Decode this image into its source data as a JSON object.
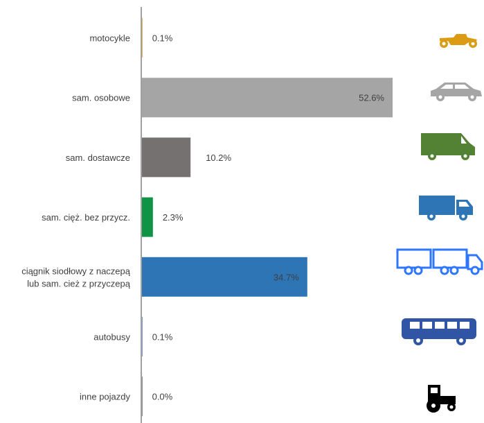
{
  "chart_data": {
    "type": "bar",
    "orientation": "horizontal",
    "title": "",
    "xlabel": "",
    "ylabel": "",
    "xlim": [
      0,
      63
    ],
    "grid": false,
    "legend": "none",
    "categories": [
      [
        "motocykle"
      ],
      [
        "sam. osobowe"
      ],
      [
        "sam. dostawcze"
      ],
      [
        "sam. cięż. bez przycz."
      ],
      [
        "ciągnik siodłowy z naczepą",
        "lub sam. cież z przyczepą"
      ],
      [
        "autobusy"
      ],
      [
        "inne pojazdy"
      ]
    ],
    "values": [
      0.1,
      52.6,
      10.2,
      2.3,
      34.7,
      0.1,
      0.0
    ],
    "value_labels": [
      "0.1%",
      "52.6%",
      "10.2%",
      "2.3%",
      "34.7%",
      "0.1%",
      "0.0%"
    ],
    "label_inside": [
      false,
      true,
      false,
      false,
      true,
      false,
      false
    ],
    "bar_colors": [
      "#DB9B12",
      "#A5A5A5",
      "#767171",
      "#0F9345",
      "#2E75B6",
      "#4472C4",
      "#404040"
    ],
    "icons": [
      "motorcycle-icon",
      "car-icon",
      "van-icon",
      "truck-icon",
      "truck-trailer-icon",
      "bus-icon",
      "tractor-icon"
    ],
    "icon_colors": [
      "#DB9B12",
      "#A5A5A5",
      "#548235",
      "#2E75B6",
      "#2E75FF",
      "#2F55A4",
      "#000000"
    ]
  }
}
